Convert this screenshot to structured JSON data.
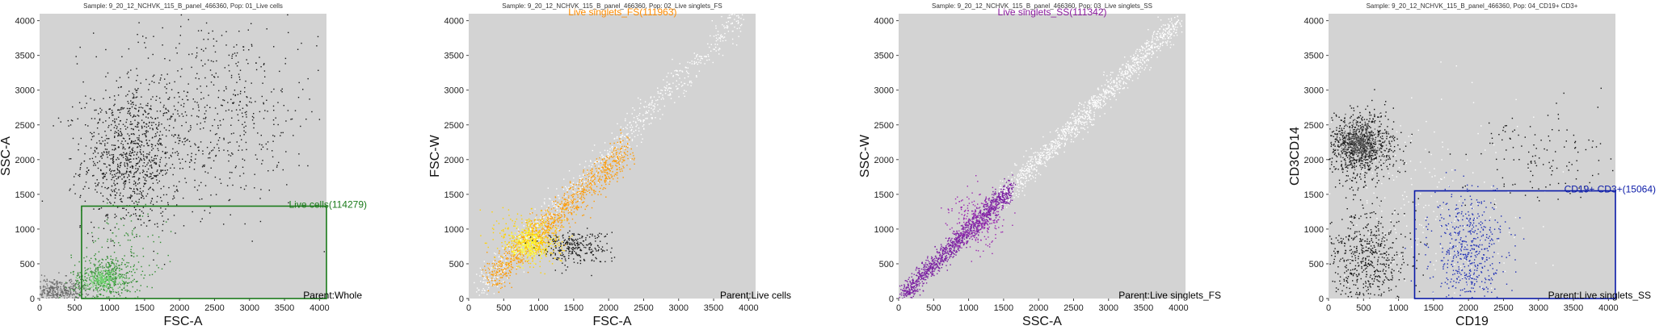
{
  "chart_data": [
    {
      "type": "scatter",
      "title": "Sample: 9_20_12_NCHVK_115_B_panel_466360, Pop: 01_Live cells",
      "xlabel": "FSC-A",
      "ylabel": "SSC-A",
      "xlim": [
        0,
        4100
      ],
      "ylim": [
        0,
        4100
      ],
      "xticks": [
        0,
        500,
        1000,
        1500,
        2000,
        2500,
        3000,
        3500,
        4000
      ],
      "yticks": [
        0,
        500,
        1000,
        1500,
        2000,
        2500,
        3000,
        3500,
        4000
      ],
      "background": "#d3d3d3",
      "parent": "Parent:Whole",
      "gate": {
        "label": "Live cells(114279)",
        "color": "#1a7a1a",
        "shape": "rectangle",
        "x": [
          600,
          4100
        ],
        "y": [
          0,
          1330
        ]
      },
      "populations": [
        {
          "color": "#1a1a1a",
          "center": [
            1300,
            2000
          ],
          "spread": [
            350,
            500
          ],
          "weight": 0.34
        },
        {
          "color": "#1a1a1a",
          "center": [
            2400,
            2700
          ],
          "spread": [
            800,
            700
          ],
          "weight": 0.24
        },
        {
          "color": "#6a6a6a",
          "center": [
            250,
            120
          ],
          "spread": [
            200,
            90
          ],
          "weight": 0.14
        },
        {
          "color": "#2e8b2e",
          "center": [
            950,
            300
          ],
          "spread": [
            250,
            160
          ],
          "weight": 0.16
        },
        {
          "color": "#6fd36f",
          "center": [
            900,
            280
          ],
          "spread": [
            120,
            70
          ],
          "weight": 0.08
        },
        {
          "color": "#2e8b2e",
          "center": [
            1200,
            750
          ],
          "spread": [
            300,
            300
          ],
          "weight": 0.04
        }
      ]
    },
    {
      "type": "scatter",
      "title": "Sample: 9_20_12_NCHVK_115_B_panel_466360, Pop: 02_Live singlets_FS",
      "xlabel": "FSC-A",
      "ylabel": "FSC-W",
      "xlim": [
        0,
        4100
      ],
      "ylim": [
        0,
        4100
      ],
      "xticks": [
        0,
        500,
        1000,
        1500,
        2000,
        2500,
        3000,
        3500,
        4000
      ],
      "yticks": [
        0,
        500,
        1000,
        1500,
        2000,
        2500,
        3000,
        3500,
        4000
      ],
      "background": "#d3d3d3",
      "parent": "Parent:Live cells",
      "gate": {
        "label": "Live singlets_FS(111963)",
        "color": "#ff8c00",
        "shape": "none"
      },
      "populations": [
        {
          "color": "#ffffff",
          "diagonal": true,
          "slope": 1.05,
          "from": 100,
          "to": 3900,
          "width": 120,
          "weight": 0.3
        },
        {
          "color": "#ff9a00",
          "diagonal": true,
          "slope": 0.95,
          "from": 300,
          "to": 2300,
          "width": 130,
          "weight": 0.36
        },
        {
          "color": "#ffd200",
          "center": [
            900,
            850
          ],
          "spread": [
            230,
            200
          ],
          "weight": 0.16
        },
        {
          "color": "#ffff33",
          "center": [
            850,
            800
          ],
          "spread": [
            120,
            100
          ],
          "weight": 0.08
        },
        {
          "color": "#1a1a1a",
          "center": [
            1500,
            750
          ],
          "spread": [
            250,
            120
          ],
          "weight": 0.1
        }
      ]
    },
    {
      "type": "scatter",
      "title": "Sample: 9_20_12_NCHVK_115_B_panel_466360, Pop: 03_Live singlets_SS",
      "xlabel": "SSC-A",
      "ylabel": "SSC-W",
      "xlim": [
        0,
        4100
      ],
      "ylim": [
        0,
        4100
      ],
      "xticks": [
        0,
        500,
        1000,
        1500,
        2000,
        2500,
        3000,
        3500,
        4000
      ],
      "yticks": [
        0,
        500,
        1000,
        1500,
        2000,
        2500,
        3000,
        3500,
        4000
      ],
      "background": "#d3d3d3",
      "parent": "Parent:Live singlets_FS",
      "gate": {
        "label": "Live singlets_SS(111342)",
        "color": "#8b1a9e",
        "shape": "none"
      },
      "populations": [
        {
          "color": "#ffffff",
          "diagonal": true,
          "slope": 1.0,
          "from": 1400,
          "to": 4000,
          "width": 90,
          "weight": 0.45
        },
        {
          "color": "#7b1fa2",
          "diagonal": true,
          "slope": 1.0,
          "from": 50,
          "to": 1600,
          "width": 80,
          "weight": 0.45
        },
        {
          "color": "#9c27b0",
          "center": [
            1100,
            1150
          ],
          "spread": [
            200,
            200
          ],
          "weight": 0.1
        }
      ]
    },
    {
      "type": "scatter",
      "title": "Sample: 9_20_12_NCHVK_115_B_panel_466360, Pop: 04_CD19+ CD3+",
      "xlabel": "CD19",
      "ylabel": "CD3CD14",
      "xlim": [
        0,
        4100
      ],
      "ylim": [
        0,
        4100
      ],
      "xticks": [
        0,
        500,
        1000,
        1500,
        2000,
        2500,
        3000,
        3500,
        4000
      ],
      "yticks": [
        0,
        500,
        1000,
        1500,
        2000,
        2500,
        3000,
        3500,
        4000
      ],
      "background": "#d3d3d3",
      "parent": "Parent:Live singlets_SS",
      "gate": {
        "label": "CD19+ CD3+(15064)",
        "color": "#0a1aa8",
        "shape": "rectangle",
        "x": [
          1230,
          4100
        ],
        "y": [
          0,
          1550
        ]
      },
      "populations": [
        {
          "color": "#111111",
          "center": [
            450,
            2200
          ],
          "spread": [
            250,
            250
          ],
          "weight": 0.3
        },
        {
          "color": "#555555",
          "center": [
            450,
            2250
          ],
          "spread": [
            140,
            140
          ],
          "weight": 0.15
        },
        {
          "color": "#111111",
          "center": [
            550,
            550
          ],
          "spread": [
            300,
            380
          ],
          "weight": 0.22
        },
        {
          "color": "#1f2fb5",
          "center": [
            2000,
            700
          ],
          "spread": [
            260,
            420
          ],
          "weight": 0.2
        },
        {
          "color": "#ffffff",
          "center": [
            1400,
            1200
          ],
          "spread": [
            700,
            800
          ],
          "weight": 0.08
        },
        {
          "color": "#111111",
          "center": [
            3000,
            2100
          ],
          "spread": [
            550,
            350
          ],
          "weight": 0.05
        }
      ]
    }
  ]
}
